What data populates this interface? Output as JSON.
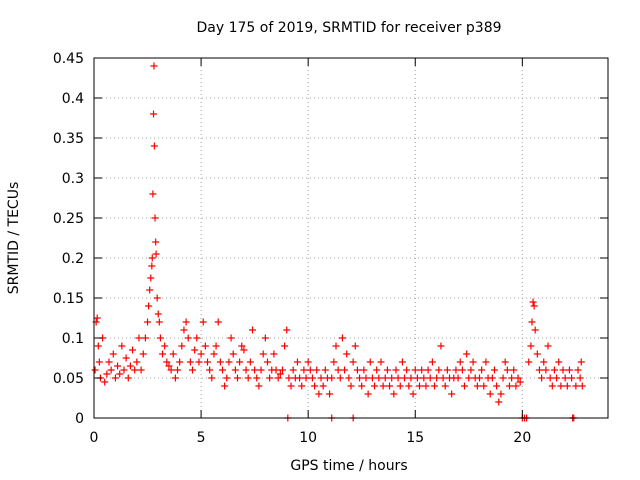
{
  "chart_data": {
    "type": "scatter",
    "title": "Day 175 of 2019, SRMTID for receiver p389",
    "xlabel": "GPS time / hours",
    "ylabel": "SRMTID / TECUs",
    "xlim": [
      0,
      24
    ],
    "ylim": [
      0,
      0.45
    ],
    "grid": true,
    "marker": "+",
    "color": "#ff0000",
    "x_ticks": [
      0,
      5,
      10,
      15,
      20
    ],
    "x_tick_labels": [
      "0",
      "5",
      "10",
      "15",
      "20"
    ],
    "y_ticks": [
      0,
      0.05,
      0.1,
      0.15,
      0.2,
      0.25,
      0.3,
      0.35,
      0.4,
      0.45
    ],
    "y_tick_labels": [
      "0",
      "0.05",
      "0.1",
      "0.15",
      "0.2",
      "0.25",
      "0.3",
      "0.35",
      "0.4",
      "0.45"
    ],
    "series": [
      {
        "name": "SRMTID",
        "points": [
          [
            0.05,
            0.06
          ],
          [
            0.1,
            0.12
          ],
          [
            0.15,
            0.125
          ],
          [
            0.2,
            0.09
          ],
          [
            0.25,
            0.07
          ],
          [
            0.3,
            0.05
          ],
          [
            0.4,
            0.1
          ],
          [
            0.5,
            0.045
          ],
          [
            0.6,
            0.055
          ],
          [
            0.7,
            0.07
          ],
          [
            0.8,
            0.06
          ],
          [
            0.9,
            0.08
          ],
          [
            1.0,
            0.05
          ],
          [
            1.1,
            0.065
          ],
          [
            1.2,
            0.055
          ],
          [
            1.3,
            0.09
          ],
          [
            1.4,
            0.06
          ],
          [
            1.5,
            0.075
          ],
          [
            1.6,
            0.05
          ],
          [
            1.7,
            0.065
          ],
          [
            1.8,
            0.085
          ],
          [
            1.9,
            0.06
          ],
          [
            2.0,
            0.07
          ],
          [
            2.1,
            0.1
          ],
          [
            2.2,
            0.06
          ],
          [
            2.3,
            0.08
          ],
          [
            2.4,
            0.1
          ],
          [
            2.5,
            0.12
          ],
          [
            2.55,
            0.14
          ],
          [
            2.6,
            0.16
          ],
          [
            2.65,
            0.175
          ],
          [
            2.7,
            0.19
          ],
          [
            2.72,
            0.2
          ],
          [
            2.75,
            0.28
          ],
          [
            2.78,
            0.38
          ],
          [
            2.8,
            0.44
          ],
          [
            2.82,
            0.34
          ],
          [
            2.85,
            0.25
          ],
          [
            2.88,
            0.22
          ],
          [
            2.9,
            0.205
          ],
          [
            2.95,
            0.15
          ],
          [
            3.0,
            0.13
          ],
          [
            3.05,
            0.12
          ],
          [
            3.1,
            0.1
          ],
          [
            3.2,
            0.08
          ],
          [
            3.3,
            0.09
          ],
          [
            3.4,
            0.07
          ],
          [
            3.5,
            0.065
          ],
          [
            3.6,
            0.06
          ],
          [
            3.7,
            0.08
          ],
          [
            3.8,
            0.05
          ],
          [
            3.9,
            0.06
          ],
          [
            4.0,
            0.07
          ],
          [
            4.1,
            0.09
          ],
          [
            4.2,
            0.11
          ],
          [
            4.3,
            0.12
          ],
          [
            4.4,
            0.1
          ],
          [
            4.5,
            0.07
          ],
          [
            4.6,
            0.06
          ],
          [
            4.7,
            0.085
          ],
          [
            4.8,
            0.1
          ],
          [
            4.9,
            0.07
          ],
          [
            5.0,
            0.08
          ],
          [
            5.1,
            0.12
          ],
          [
            5.2,
            0.09
          ],
          [
            5.3,
            0.07
          ],
          [
            5.4,
            0.06
          ],
          [
            5.5,
            0.05
          ],
          [
            5.6,
            0.08
          ],
          [
            5.7,
            0.09
          ],
          [
            5.8,
            0.12
          ],
          [
            5.9,
            0.07
          ],
          [
            6.0,
            0.06
          ],
          [
            6.1,
            0.04
          ],
          [
            6.2,
            0.05
          ],
          [
            6.3,
            0.07
          ],
          [
            6.4,
            0.1
          ],
          [
            6.5,
            0.08
          ],
          [
            6.6,
            0.06
          ],
          [
            6.7,
            0.05
          ],
          [
            6.8,
            0.07
          ],
          [
            6.9,
            0.09
          ],
          [
            7.0,
            0.085
          ],
          [
            7.1,
            0.06
          ],
          [
            7.2,
            0.05
          ],
          [
            7.3,
            0.07
          ],
          [
            7.4,
            0.11
          ],
          [
            7.5,
            0.06
          ],
          [
            7.6,
            0.05
          ],
          [
            7.7,
            0.04
          ],
          [
            7.8,
            0.06
          ],
          [
            7.9,
            0.08
          ],
          [
            8.0,
            0.1
          ],
          [
            8.1,
            0.07
          ],
          [
            8.2,
            0.05
          ],
          [
            8.3,
            0.06
          ],
          [
            8.4,
            0.08
          ],
          [
            8.5,
            0.06
          ],
          [
            8.6,
            0.05
          ],
          [
            8.7,
            0.055
          ],
          [
            8.8,
            0.06
          ],
          [
            8.9,
            0.09
          ],
          [
            9.0,
            0.11
          ],
          [
            9.1,
            0.05
          ],
          [
            9.2,
            0.04
          ],
          [
            9.3,
            0.06
          ],
          [
            9.4,
            0.05
          ],
          [
            9.5,
            0.07
          ],
          [
            9.6,
            0.05
          ],
          [
            9.7,
            0.04
          ],
          [
            9.8,
            0.06
          ],
          [
            9.9,
            0.05
          ],
          [
            10.0,
            0.07
          ],
          [
            10.1,
            0.06
          ],
          [
            10.2,
            0.05
          ],
          [
            10.3,
            0.04
          ],
          [
            10.4,
            0.06
          ],
          [
            10.5,
            0.03
          ],
          [
            10.6,
            0.05
          ],
          [
            10.7,
            0.04
          ],
          [
            10.8,
            0.06
          ],
          [
            10.9,
            0.05
          ],
          [
            11.0,
            0.03
          ],
          [
            11.1,
            0.05
          ],
          [
            11.2,
            0.07
          ],
          [
            11.3,
            0.09
          ],
          [
            11.4,
            0.06
          ],
          [
            11.5,
            0.05
          ],
          [
            11.6,
            0.1
          ],
          [
            11.7,
            0.06
          ],
          [
            11.8,
            0.08
          ],
          [
            11.9,
            0.05
          ],
          [
            12.0,
            0.04
          ],
          [
            12.1,
            0.07
          ],
          [
            12.2,
            0.09
          ],
          [
            12.3,
            0.06
          ],
          [
            12.4,
            0.05
          ],
          [
            12.5,
            0.04
          ],
          [
            12.6,
            0.06
          ],
          [
            12.7,
            0.05
          ],
          [
            12.8,
            0.03
          ],
          [
            12.9,
            0.07
          ],
          [
            13.0,
            0.05
          ],
          [
            13.1,
            0.04
          ],
          [
            13.2,
            0.06
          ],
          [
            13.3,
            0.05
          ],
          [
            13.4,
            0.07
          ],
          [
            13.5,
            0.04
          ],
          [
            13.6,
            0.05
          ],
          [
            13.7,
            0.06
          ],
          [
            13.8,
            0.04
          ],
          [
            13.9,
            0.05
          ],
          [
            14.0,
            0.03
          ],
          [
            14.1,
            0.06
          ],
          [
            14.2,
            0.05
          ],
          [
            14.3,
            0.04
          ],
          [
            14.4,
            0.07
          ],
          [
            14.5,
            0.05
          ],
          [
            14.6,
            0.06
          ],
          [
            14.7,
            0.04
          ],
          [
            14.8,
            0.05
          ],
          [
            14.9,
            0.03
          ],
          [
            15.0,
            0.06
          ],
          [
            15.1,
            0.05
          ],
          [
            15.2,
            0.04
          ],
          [
            15.3,
            0.06
          ],
          [
            15.4,
            0.05
          ],
          [
            15.5,
            0.04
          ],
          [
            15.6,
            0.06
          ],
          [
            15.7,
            0.05
          ],
          [
            15.8,
            0.07
          ],
          [
            15.9,
            0.04
          ],
          [
            16.0,
            0.05
          ],
          [
            16.1,
            0.06
          ],
          [
            16.2,
            0.09
          ],
          [
            16.3,
            0.05
          ],
          [
            16.4,
            0.04
          ],
          [
            16.5,
            0.06
          ],
          [
            16.6,
            0.05
          ],
          [
            16.7,
            0.03
          ],
          [
            16.8,
            0.05
          ],
          [
            16.9,
            0.06
          ],
          [
            17.0,
            0.05
          ],
          [
            17.1,
            0.07
          ],
          [
            17.2,
            0.06
          ],
          [
            17.3,
            0.04
          ],
          [
            17.4,
            0.08
          ],
          [
            17.5,
            0.05
          ],
          [
            17.6,
            0.06
          ],
          [
            17.7,
            0.07
          ],
          [
            17.8,
            0.05
          ],
          [
            17.9,
            0.04
          ],
          [
            18.0,
            0.05
          ],
          [
            18.1,
            0.06
          ],
          [
            18.2,
            0.04
          ],
          [
            18.3,
            0.07
          ],
          [
            18.4,
            0.05
          ],
          [
            18.5,
            0.03
          ],
          [
            18.6,
            0.05
          ],
          [
            18.7,
            0.06
          ],
          [
            18.8,
            0.04
          ],
          [
            18.9,
            0.02
          ],
          [
            19.0,
            0.03
          ],
          [
            19.1,
            0.05
          ],
          [
            19.2,
            0.07
          ],
          [
            19.3,
            0.06
          ],
          [
            19.4,
            0.04
          ],
          [
            19.5,
            0.05
          ],
          [
            19.6,
            0.06
          ],
          [
            19.7,
            0.04
          ],
          [
            19.8,
            0.05
          ],
          [
            19.9,
            0.045
          ],
          [
            20.0,
            0.0
          ],
          [
            20.1,
            0.0
          ],
          [
            20.2,
            0.0
          ],
          [
            20.3,
            0.07
          ],
          [
            20.4,
            0.09
          ],
          [
            20.45,
            0.12
          ],
          [
            20.5,
            0.145
          ],
          [
            20.55,
            0.14
          ],
          [
            20.6,
            0.11
          ],
          [
            20.7,
            0.08
          ],
          [
            20.8,
            0.06
          ],
          [
            20.9,
            0.05
          ],
          [
            21.0,
            0.07
          ],
          [
            21.1,
            0.06
          ],
          [
            21.2,
            0.09
          ],
          [
            21.3,
            0.05
          ],
          [
            21.4,
            0.04
          ],
          [
            21.5,
            0.06
          ],
          [
            21.6,
            0.05
          ],
          [
            21.7,
            0.07
          ],
          [
            21.8,
            0.04
          ],
          [
            21.9,
            0.06
          ],
          [
            22.0,
            0.05
          ],
          [
            22.1,
            0.04
          ],
          [
            22.2,
            0.06
          ],
          [
            22.3,
            0.05
          ],
          [
            22.4,
            0.0
          ],
          [
            22.5,
            0.04
          ],
          [
            22.6,
            0.06
          ],
          [
            22.7,
            0.05
          ],
          [
            22.75,
            0.07
          ],
          [
            22.8,
            0.04
          ],
          [
            9.05,
            0.0
          ],
          [
            11.1,
            0.0
          ],
          [
            12.1,
            0.0
          ],
          [
            22.35,
            0.0
          ]
        ]
      }
    ]
  }
}
